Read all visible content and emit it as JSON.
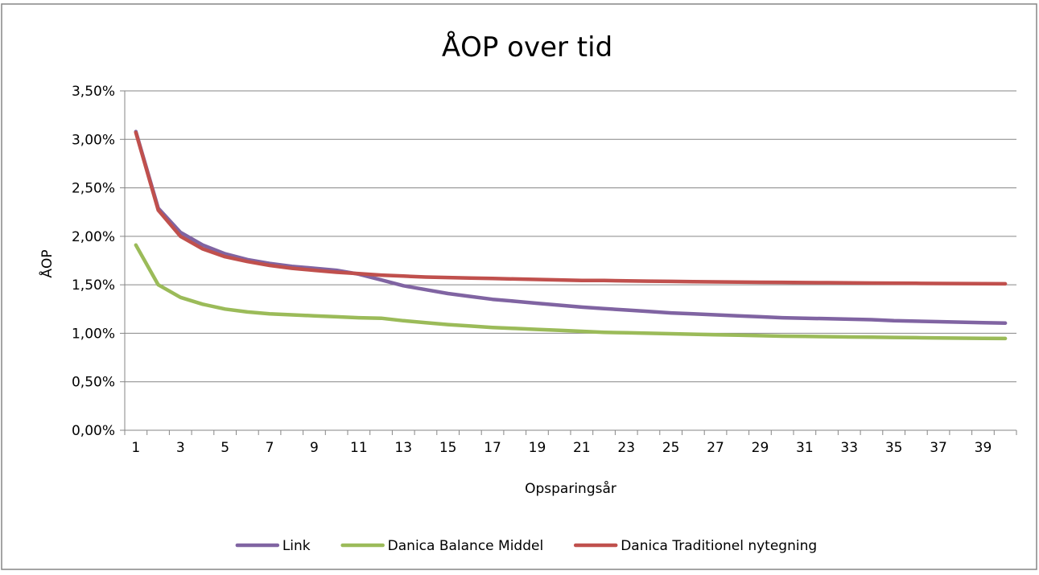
{
  "chart_data": {
    "type": "line",
    "title": "ÅOP over tid",
    "xlabel": "Opsparingsår",
    "ylabel": "ÅOP",
    "x": [
      1,
      2,
      3,
      4,
      5,
      6,
      7,
      8,
      9,
      10,
      11,
      12,
      13,
      14,
      15,
      16,
      17,
      18,
      19,
      20,
      21,
      22,
      23,
      24,
      25,
      26,
      27,
      28,
      29,
      30,
      31,
      32,
      33,
      34,
      35,
      36,
      37,
      38,
      39,
      40
    ],
    "x_tick_labels": [
      "1",
      "3",
      "5",
      "7",
      "9",
      "11",
      "13",
      "15",
      "17",
      "19",
      "21",
      "23",
      "25",
      "27",
      "29",
      "31",
      "33",
      "35",
      "37",
      "39"
    ],
    "y_tick_labels": [
      "0,00%",
      "0,50%",
      "1,00%",
      "1,50%",
      "2,00%",
      "2,50%",
      "3,00%",
      "3,50%"
    ],
    "ylim": [
      0,
      3.5
    ],
    "y_unit": "percent",
    "grid": true,
    "legend_position": "bottom",
    "series": [
      {
        "name": "Link",
        "color": "#8064A2",
        "values": [
          3.08,
          2.29,
          2.04,
          1.91,
          1.82,
          1.76,
          1.72,
          1.69,
          1.67,
          1.65,
          1.61,
          1.55,
          1.49,
          1.45,
          1.41,
          1.38,
          1.35,
          1.33,
          1.31,
          1.29,
          1.27,
          1.255,
          1.24,
          1.225,
          1.21,
          1.2,
          1.19,
          1.18,
          1.17,
          1.16,
          1.155,
          1.15,
          1.145,
          1.14,
          1.13,
          1.125,
          1.12,
          1.115,
          1.11,
          1.105
        ]
      },
      {
        "name": "Danica Balance Middel",
        "color": "#9BBB59",
        "values": [
          1.91,
          1.5,
          1.37,
          1.3,
          1.25,
          1.22,
          1.2,
          1.19,
          1.18,
          1.17,
          1.16,
          1.155,
          1.13,
          1.11,
          1.09,
          1.075,
          1.06,
          1.05,
          1.04,
          1.03,
          1.02,
          1.01,
          1.005,
          1.0,
          0.995,
          0.99,
          0.985,
          0.98,
          0.975,
          0.97,
          0.968,
          0.965,
          0.962,
          0.96,
          0.957,
          0.955,
          0.952,
          0.95,
          0.948,
          0.946
        ]
      },
      {
        "name": "Danica Traditionel nytegning",
        "color": "#C0504D",
        "values": [
          3.07,
          2.27,
          2.0,
          1.87,
          1.79,
          1.74,
          1.7,
          1.67,
          1.65,
          1.63,
          1.615,
          1.6,
          1.59,
          1.58,
          1.575,
          1.57,
          1.565,
          1.56,
          1.555,
          1.55,
          1.545,
          1.545,
          1.54,
          1.538,
          1.535,
          1.533,
          1.53,
          1.528,
          1.526,
          1.525,
          1.523,
          1.522,
          1.52,
          1.518,
          1.517,
          1.515,
          1.514,
          1.513,
          1.512,
          1.51
        ]
      }
    ]
  }
}
